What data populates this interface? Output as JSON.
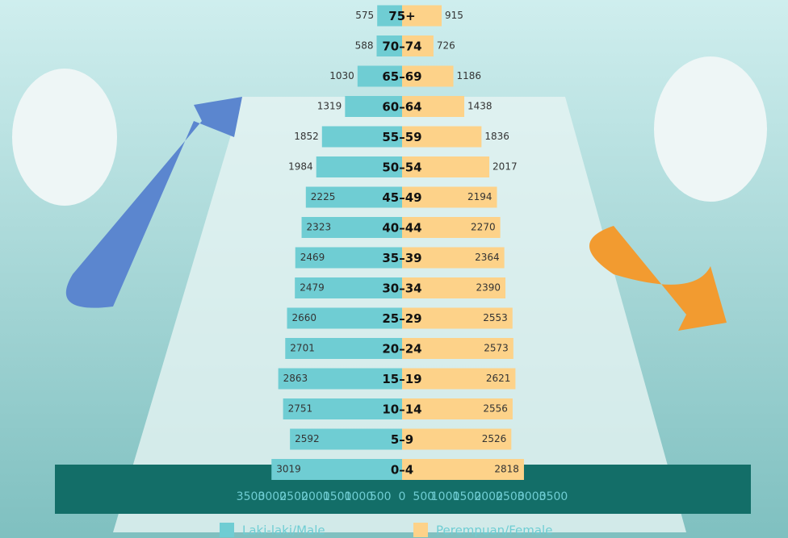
{
  "chart_data": {
    "type": "population-pyramid",
    "categories": [
      "0–4",
      "5–9",
      "10–14",
      "15–19",
      "20–24",
      "25–29",
      "30–34",
      "35–39",
      "40–44",
      "45–49",
      "50–54",
      "55–59",
      "60–64",
      "65–69",
      "70–74",
      "75+"
    ],
    "series": [
      {
        "name": "Laki-laki/Male",
        "color": "#6fcdd3",
        "values": [
          3019,
          2592,
          2751,
          2863,
          2701,
          2660,
          2479,
          2469,
          2323,
          2225,
          1984,
          1852,
          1319,
          1030,
          588,
          575
        ]
      },
      {
        "name": "Perempuan/Female",
        "color": "#fdd289",
        "values": [
          2818,
          2526,
          2556,
          2621,
          2573,
          2553,
          2390,
          2364,
          2270,
          2194,
          2017,
          1836,
          1438,
          1186,
          726,
          915
        ]
      }
    ],
    "xlim": [
      -3500,
      3500
    ],
    "xticks": [
      {
        "value": -3500,
        "label": "3500"
      },
      {
        "value": -3000,
        "label": "3000"
      },
      {
        "value": -2500,
        "label": "2500"
      },
      {
        "value": -2000,
        "label": "2000"
      },
      {
        "value": -1500,
        "label": "1500"
      },
      {
        "value": -1000,
        "label": "1000"
      },
      {
        "value": -500,
        "label": "500"
      },
      0,
      500,
      1000,
      1500,
      2000,
      2500,
      3000,
      3500
    ]
  }
}
